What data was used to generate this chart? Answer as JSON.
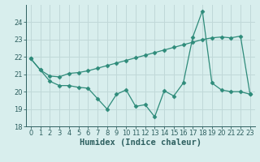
{
  "line1_x": [
    0,
    1,
    2,
    3,
    4,
    5,
    6,
    7,
    8,
    9,
    10,
    11,
    12,
    13,
    14,
    15,
    16,
    17,
    18,
    19,
    20,
    21,
    22,
    23
  ],
  "line1_y": [
    21.9,
    21.25,
    20.9,
    20.85,
    21.05,
    21.1,
    21.2,
    21.35,
    21.5,
    21.65,
    21.8,
    21.95,
    22.1,
    22.25,
    22.4,
    22.55,
    22.7,
    22.85,
    23.0,
    23.1,
    23.15,
    23.1,
    23.2,
    19.85
  ],
  "line2_x": [
    0,
    1,
    2,
    3,
    4,
    5,
    6,
    7,
    8,
    9,
    10,
    11,
    12,
    13,
    14,
    15,
    16,
    17,
    18,
    19,
    20,
    21,
    22,
    23
  ],
  "line2_y": [
    21.9,
    21.25,
    20.6,
    20.35,
    20.35,
    20.25,
    20.2,
    19.6,
    19.0,
    19.85,
    20.1,
    19.15,
    19.25,
    18.55,
    20.05,
    19.75,
    20.5,
    23.15,
    24.65,
    20.5,
    20.1,
    20.0,
    20.0,
    19.85
  ],
  "line_color": "#2e8b7a",
  "bg_color": "#d8eeed",
  "grid_color": "#c0d8d8",
  "xlabel": "Humidex (Indice chaleur)",
  "ylim": [
    18,
    25
  ],
  "xlim": [
    -0.5,
    23.5
  ],
  "yticks": [
    18,
    19,
    20,
    21,
    22,
    23,
    24
  ],
  "xticks": [
    0,
    1,
    2,
    3,
    4,
    5,
    6,
    7,
    8,
    9,
    10,
    11,
    12,
    13,
    14,
    15,
    16,
    17,
    18,
    19,
    20,
    21,
    22,
    23
  ],
  "marker": "D",
  "markersize": 2.5,
  "linewidth": 0.9,
  "font_color": "#2e6060",
  "tick_fontsize": 6,
  "xlabel_fontsize": 7.5
}
